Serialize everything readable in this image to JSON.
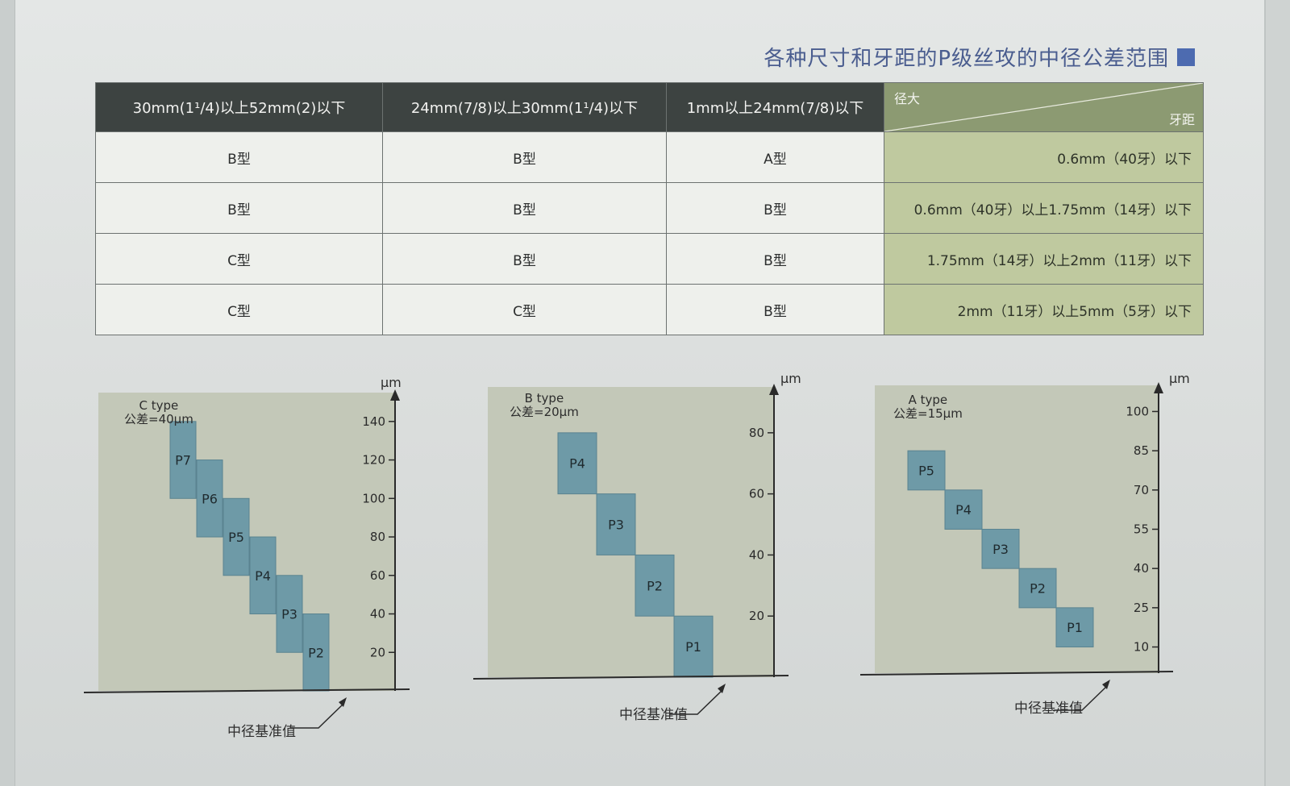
{
  "title": "各种尺寸和牙距的P级丝攻的中径公差范围",
  "table": {
    "corner_top": "径大",
    "corner_bottom": "牙距",
    "columns": [
      "1mm以上24mm(7/8)以下",
      "24mm(7/8)以上30mm(1¹/4)以下",
      "30mm(1¹/4)以上52mm(2)以下"
    ],
    "rows": [
      {
        "label": "0.6mm（40牙）以下",
        "cells": [
          "A型",
          "B型",
          "B型"
        ]
      },
      {
        "label": "0.6mm（40牙）以上1.75mm（14牙）以下",
        "cells": [
          "B型",
          "B型",
          "B型"
        ]
      },
      {
        "label": "1.75mm（14牙）以上2mm（11牙）以下",
        "cells": [
          "B型",
          "B型",
          "C型"
        ]
      },
      {
        "label": "2mm（11牙）以上5mm（5牙）以下",
        "cells": [
          "B型",
          "C型",
          "C型"
        ]
      }
    ]
  },
  "baseline_label": "中径基准值",
  "charts": [
    {
      "unit": "μm",
      "type_name": "A type",
      "tolerance": "公差=15μm",
      "ticks": [
        10,
        25,
        40,
        55,
        70,
        85,
        100
      ],
      "ymax": 110,
      "boxes": [
        {
          "label": "P1",
          "low": 10,
          "high": 25
        },
        {
          "label": "P2",
          "low": 25,
          "high": 40
        },
        {
          "label": "P3",
          "low": 40,
          "high": 55
        },
        {
          "label": "P4",
          "low": 55,
          "high": 70
        },
        {
          "label": "P5",
          "low": 70,
          "high": 85
        }
      ]
    },
    {
      "unit": "μm",
      "type_name": "B type",
      "tolerance": "公差=20μm",
      "ticks": [
        20,
        40,
        60,
        80
      ],
      "ymax": 95,
      "boxes": [
        {
          "label": "P1",
          "low": 0,
          "high": 20
        },
        {
          "label": "P2",
          "low": 20,
          "high": 40
        },
        {
          "label": "P3",
          "low": 40,
          "high": 60
        },
        {
          "label": "P4",
          "low": 60,
          "high": 80
        }
      ]
    },
    {
      "unit": "μm",
      "type_name": "C type",
      "tolerance": "公差=40μm",
      "ticks": [
        20,
        40,
        60,
        80,
        100,
        120,
        140
      ],
      "ymax": 155,
      "boxes": [
        {
          "label": "P2",
          "low": 0,
          "high": 40
        },
        {
          "label": "P3",
          "low": 20,
          "high": 60
        },
        {
          "label": "P4",
          "low": 40,
          "high": 80
        },
        {
          "label": "P5",
          "low": 60,
          "high": 100
        },
        {
          "label": "P6",
          "low": 80,
          "high": 120
        },
        {
          "label": "P7",
          "low": 100,
          "high": 140
        }
      ]
    }
  ],
  "colors": {
    "plot_bg": "#c3c8b8",
    "box_fill": "#6e9aa7",
    "box_stroke": "#5a8390",
    "axis": "#2a2a2a",
    "header_dark": "#3d4341",
    "header_green": "#8c9a72",
    "rowhead_green": "#bfc99f"
  }
}
